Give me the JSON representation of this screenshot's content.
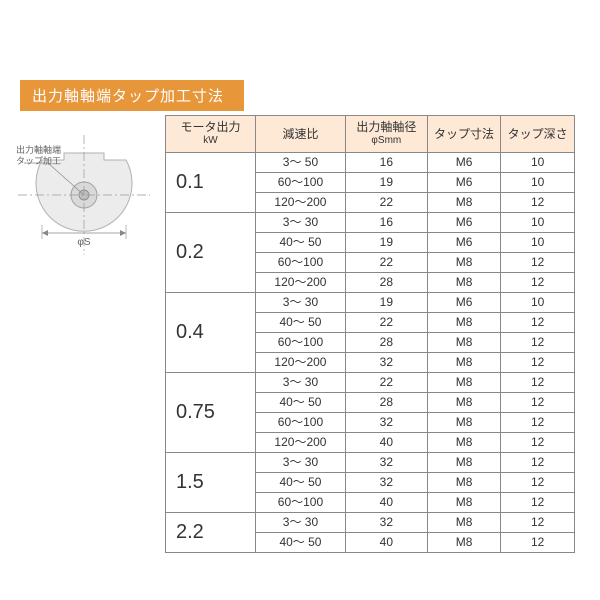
{
  "title": "出力軸軸端タップ加工寸法",
  "diagram": {
    "label": "出力軸軸端\nタップ加工",
    "phi_label": "φS"
  },
  "colors": {
    "title_bg": "#e8963a",
    "title_fg": "#ffffff",
    "th_bg": "#fde9d6",
    "border": "#888888",
    "diagram_stroke": "#b9b9b9",
    "diagram_fill": "#e9e9e9"
  },
  "columns": [
    {
      "line1": "モータ出力",
      "line2": "kW"
    },
    {
      "line1": "減速比",
      "line2": ""
    },
    {
      "line1": "出力軸軸径",
      "line2": "φSmm"
    },
    {
      "line1": "タップ寸法",
      "line2": ""
    },
    {
      "line1": "タップ深さ",
      "line2": ""
    }
  ],
  "groups": [
    {
      "motor": "0.1",
      "rows": [
        {
          "ratio": "3～  50",
          "dia": "16",
          "tap": "M6",
          "depth": "10"
        },
        {
          "ratio": "60～100",
          "dia": "19",
          "tap": "M6",
          "depth": "10"
        },
        {
          "ratio": "120～200",
          "dia": "22",
          "tap": "M8",
          "depth": "12"
        }
      ]
    },
    {
      "motor": "0.2",
      "rows": [
        {
          "ratio": "3～  30",
          "dia": "16",
          "tap": "M6",
          "depth": "10"
        },
        {
          "ratio": "40～  50",
          "dia": "19",
          "tap": "M6",
          "depth": "10"
        },
        {
          "ratio": "60～100",
          "dia": "22",
          "tap": "M8",
          "depth": "12"
        },
        {
          "ratio": "120～200",
          "dia": "28",
          "tap": "M8",
          "depth": "12"
        }
      ]
    },
    {
      "motor": "0.4",
      "rows": [
        {
          "ratio": "3～  30",
          "dia": "19",
          "tap": "M6",
          "depth": "10"
        },
        {
          "ratio": "40～  50",
          "dia": "22",
          "tap": "M8",
          "depth": "12"
        },
        {
          "ratio": "60～100",
          "dia": "28",
          "tap": "M8",
          "depth": "12"
        },
        {
          "ratio": "120～200",
          "dia": "32",
          "tap": "M8",
          "depth": "12"
        }
      ]
    },
    {
      "motor": "0.75",
      "rows": [
        {
          "ratio": "3～  30",
          "dia": "22",
          "tap": "M8",
          "depth": "12"
        },
        {
          "ratio": "40～  50",
          "dia": "28",
          "tap": "M8",
          "depth": "12"
        },
        {
          "ratio": "60～100",
          "dia": "32",
          "tap": "M8",
          "depth": "12"
        },
        {
          "ratio": "120～200",
          "dia": "40",
          "tap": "M8",
          "depth": "12"
        }
      ]
    },
    {
      "motor": "1.5",
      "rows": [
        {
          "ratio": "3～  30",
          "dia": "32",
          "tap": "M8",
          "depth": "12"
        },
        {
          "ratio": "40～  50",
          "dia": "32",
          "tap": "M8",
          "depth": "12"
        },
        {
          "ratio": "60～100",
          "dia": "40",
          "tap": "M8",
          "depth": "12"
        }
      ]
    },
    {
      "motor": "2.2",
      "rows": [
        {
          "ratio": "3～  30",
          "dia": "32",
          "tap": "M8",
          "depth": "12"
        },
        {
          "ratio": "40～  50",
          "dia": "40",
          "tap": "M8",
          "depth": "12"
        }
      ]
    }
  ]
}
